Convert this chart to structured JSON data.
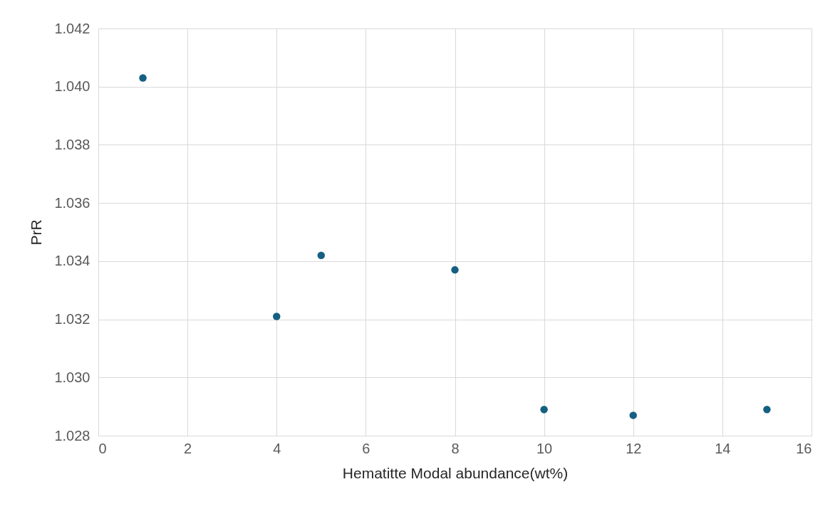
{
  "chart_data": {
    "type": "scatter",
    "xlabel": "Hematitte Modal abundance(wt%)",
    "ylabel": "PrR",
    "x": [
      1,
      4,
      5,
      8,
      10,
      12,
      15
    ],
    "series": [
      {
        "color": "#156082",
        "values": [
          1.0403,
          1.0321,
          1.0342,
          1.0337,
          1.0289,
          1.0287,
          1.0289
        ]
      }
    ],
    "xlim": [
      0,
      16
    ],
    "xticks": [
      0,
      2,
      4,
      6,
      8,
      10,
      12,
      14,
      16
    ],
    "ylim": [
      1.028,
      1.042
    ],
    "yticks": [
      1.028,
      {
        "value": 1.03,
        "label": "1.030"
      },
      1.032,
      1.034,
      1.036,
      1.038,
      {
        "value": 1.04,
        "label": "1.040"
      },
      1.042
    ],
    "grid": true,
    "marker": "circle"
  }
}
